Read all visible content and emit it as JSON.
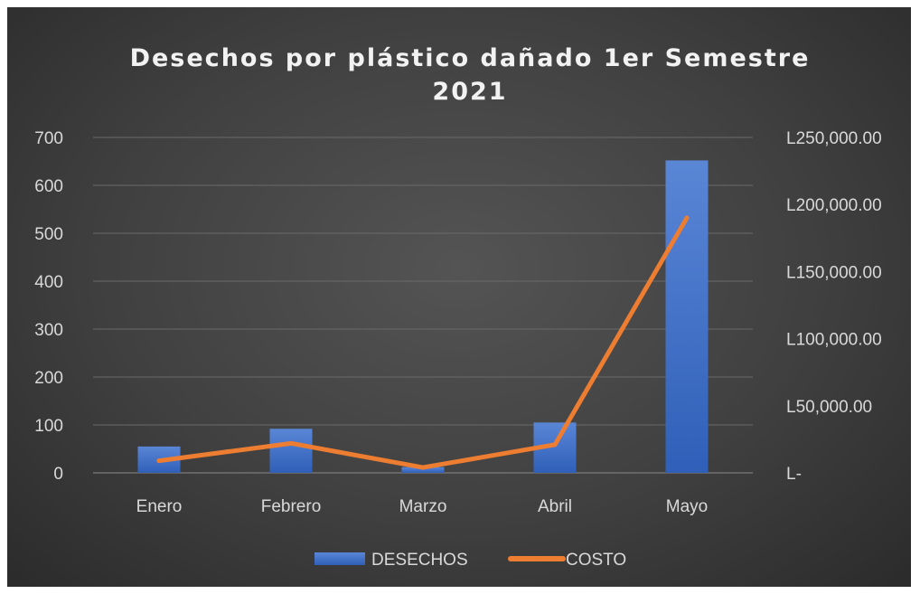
{
  "chart_data": {
    "type": "bar",
    "title_lines": [
      "Desechos por plástico dañado 1er Semestre",
      "2021"
    ],
    "categories": [
      "Enero",
      "Febrero",
      "Marzo",
      "Abril",
      "Mayo"
    ],
    "series": [
      {
        "name": "DESECHOS",
        "type": "bar",
        "axis": "left",
        "values": [
          55,
          92,
          12,
          105,
          652
        ]
      },
      {
        "name": "COSTO",
        "type": "line",
        "axis": "right",
        "values": [
          9000,
          22000,
          4000,
          21000,
          190000
        ]
      }
    ],
    "y_left": {
      "min": 0,
      "max": 700,
      "step": 100,
      "tick_labels": [
        "0",
        "100",
        "200",
        "300",
        "400",
        "500",
        "600",
        "700"
      ]
    },
    "y_right": {
      "min": 0,
      "max": 250000,
      "step": 50000,
      "tick_labels": [
        "L-",
        "L50,000.00",
        "L100,000.00",
        "L150,000.00",
        "L200,000.00",
        "L250,000.00"
      ]
    },
    "legend_position": "bottom",
    "grid": true,
    "colors": {
      "bar": "#4472c4",
      "line": "#ed7d31",
      "grid": "#6a6a6a",
      "text": "#d9d9d9"
    }
  }
}
